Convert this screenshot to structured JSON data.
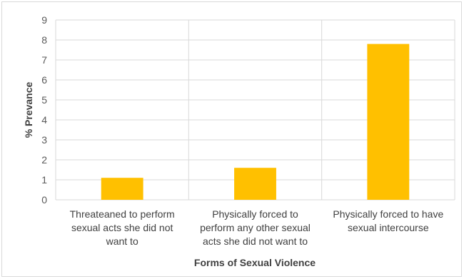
{
  "chart_data": {
    "type": "bar",
    "categories": [
      [
        "Threateaned to perform",
        "sexual acts she did not",
        "want to"
      ],
      [
        "Physically forced to",
        "perform any other sexual",
        "acts she did not want to"
      ],
      [
        "Physically forced to have",
        "sexual intercourse"
      ]
    ],
    "values": [
      1.1,
      1.6,
      7.8
    ],
    "xlabel": "Forms of Sexual Violence",
    "ylabel": "% Prevance",
    "ylim": [
      0,
      9
    ],
    "yticks": [
      0,
      1,
      2,
      3,
      4,
      5,
      6,
      7,
      8,
      9
    ],
    "bar_color": "#ffc000",
    "grid": true,
    "legend": "none"
  }
}
